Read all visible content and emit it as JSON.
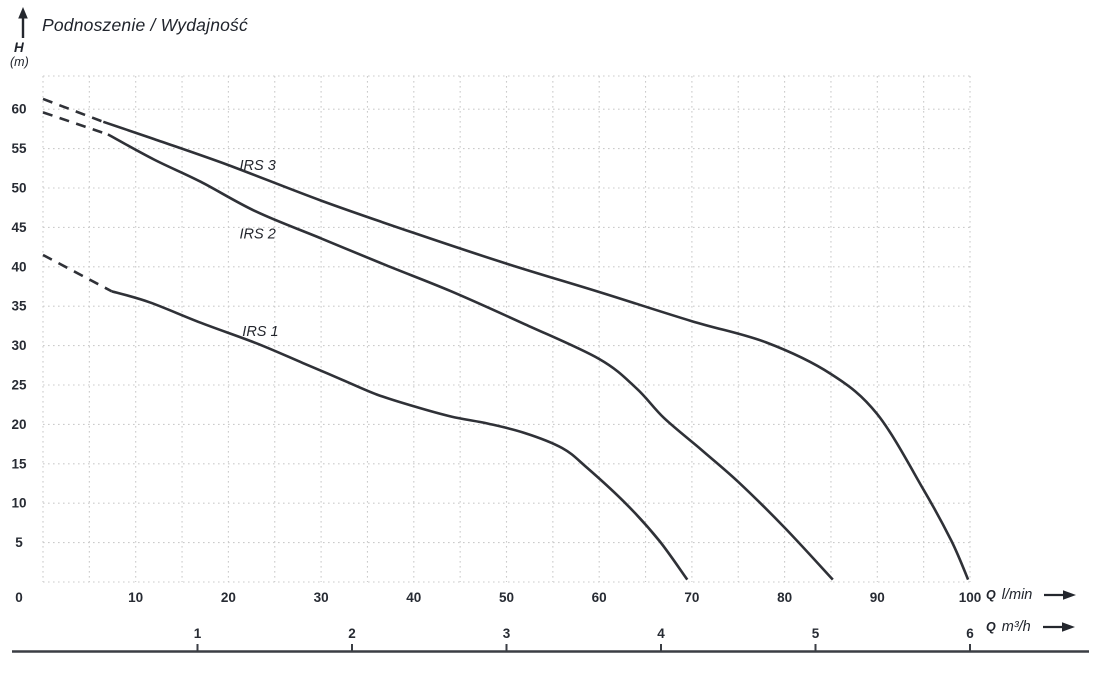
{
  "title": "Podnoszenie / Wydajność",
  "y_axis": {
    "symbol": "H",
    "unit": "(m)"
  },
  "flow_axis_lmin": {
    "prefix": "Q",
    "unit": "l/min"
  },
  "flow_axis_m3h": {
    "prefix": "Q",
    "unit": "m³/h"
  },
  "colors": {
    "curve": "#2f3137",
    "grid": "#cbcbcb",
    "text": "#272b33",
    "axis_line": "#3b3e44",
    "background": "#ffffff"
  },
  "chart_data": {
    "type": "line",
    "title": "Podnoszenie / Wydajność",
    "ylabel": "H (m)",
    "xlabel_primary": "Q l/min",
    "xlabel_secondary": "Q m³/h",
    "xlim_lmin": [
      0,
      100
    ],
    "xlim_m3h": [
      0,
      6
    ],
    "ylim": [
      0,
      64
    ],
    "grid": "dotted, every 5 l/min horizontally and 5 m vertically",
    "legend_position": "inline labels next to curves",
    "y_ticks": [
      0,
      5,
      10,
      15,
      20,
      25,
      30,
      35,
      40,
      45,
      50,
      55,
      60
    ],
    "x_ticks_lmin": [
      0,
      10,
      20,
      30,
      40,
      50,
      60,
      70,
      80,
      90,
      100
    ],
    "x_ticks_m3h": [
      1,
      2,
      3,
      4,
      5,
      6
    ],
    "lmin_per_m3h": 16.6667,
    "series": [
      {
        "name": "IRS 3",
        "dash_leadin": [
          [
            0,
            61.3
          ],
          [
            6.5,
            58.4
          ]
        ],
        "points": [
          [
            6.5,
            58.4
          ],
          [
            12,
            56.2
          ],
          [
            20,
            52.9
          ],
          [
            30,
            48.4
          ],
          [
            40,
            44.3
          ],
          [
            50,
            40.4
          ],
          [
            60,
            36.8
          ],
          [
            70,
            33.1
          ],
          [
            78,
            30.4
          ],
          [
            85,
            26.4
          ],
          [
            90,
            21.3
          ],
          [
            95,
            11.7
          ],
          [
            98,
            5.2
          ],
          [
            99.8,
            0.3
          ]
        ],
        "label": {
          "text": "IRS 3",
          "q": 21.2,
          "h": 52.3
        }
      },
      {
        "name": "IRS 2",
        "dash_leadin": [
          [
            0,
            59.6
          ],
          [
            7,
            56.8
          ]
        ],
        "points": [
          [
            7,
            56.8
          ],
          [
            12,
            53.6
          ],
          [
            17,
            50.8
          ],
          [
            23,
            47.0
          ],
          [
            30,
            43.6
          ],
          [
            37,
            40.2
          ],
          [
            44,
            36.9
          ],
          [
            52,
            32.7
          ],
          [
            60,
            28.3
          ],
          [
            64,
            24.6
          ],
          [
            67,
            20.8
          ],
          [
            71,
            16.8
          ],
          [
            75,
            12.7
          ],
          [
            80,
            6.9
          ],
          [
            85.2,
            0.3
          ]
        ],
        "label": {
          "text": "IRS 2",
          "q": 21.2,
          "h": 43.6
        }
      },
      {
        "name": "IRS 1",
        "dash_leadin": [
          [
            0,
            41.5
          ],
          [
            7.4,
            36.9
          ]
        ],
        "points": [
          [
            7.4,
            36.9
          ],
          [
            11.5,
            35.5
          ],
          [
            17,
            32.9
          ],
          [
            23,
            30.3
          ],
          [
            28,
            27.8
          ],
          [
            32,
            25.8
          ],
          [
            36,
            23.8
          ],
          [
            40,
            22.3
          ],
          [
            44,
            21.0
          ],
          [
            48,
            20.1
          ],
          [
            52,
            18.9
          ],
          [
            56,
            17.0
          ],
          [
            58.6,
            14.6
          ],
          [
            63,
            9.8
          ],
          [
            66.5,
            5.2
          ],
          [
            69.5,
            0.3
          ]
        ],
        "label": {
          "text": "IRS 1",
          "q": 21.5,
          "h": 31.2
        }
      }
    ]
  }
}
